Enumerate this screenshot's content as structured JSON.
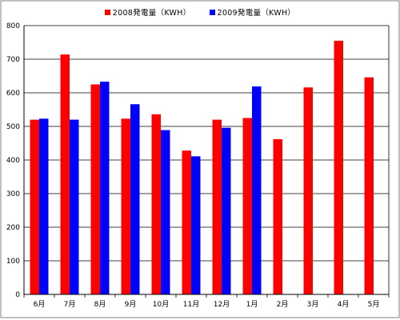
{
  "chart_data": {
    "type": "bar",
    "categories": [
      "6月",
      "7月",
      "8月",
      "9月",
      "10月",
      "11月",
      "12月",
      "1月",
      "2月",
      "3月",
      "4月",
      "5月"
    ],
    "series": [
      {
        "name": "2008発電量（KWH）",
        "color": "#ff0000",
        "values": [
          520,
          714,
          625,
          523,
          536,
          428,
          520,
          525,
          462,
          616,
          755,
          646
        ]
      },
      {
        "name": "2009発電量（KWH）",
        "color": "#0000ff",
        "values": [
          523,
          520,
          633,
          566,
          489,
          411,
          496,
          619,
          null,
          null,
          null,
          null
        ]
      }
    ],
    "y_ticks": [
      "0",
      "100",
      "200",
      "300",
      "400",
      "500",
      "600",
      "700",
      "800"
    ],
    "ylim": [
      0,
      800
    ],
    "grid": true,
    "legend_position": "top",
    "title": "",
    "xlabel": "",
    "ylabel": ""
  }
}
